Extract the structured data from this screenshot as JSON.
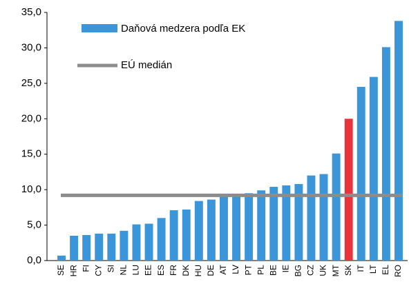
{
  "chart_data": {
    "type": "bar",
    "categories": [
      "SE",
      "HR",
      "FI",
      "CY",
      "SI",
      "NL",
      "LU",
      "EE",
      "ES",
      "FR",
      "DK",
      "HU",
      "DE",
      "AT",
      "LV",
      "PT",
      "PL",
      "BE",
      "IE",
      "BG",
      "CZ",
      "UK",
      "MT",
      "SK",
      "IT",
      "LT",
      "EL",
      "RO"
    ],
    "series": [
      {
        "name": "Daňová medzera podľa EK",
        "color": "#3a96d8",
        "values": [
          0.7,
          3.5,
          3.6,
          3.8,
          3.8,
          4.2,
          5.1,
          5.2,
          6.0,
          7.1,
          7.2,
          8.4,
          8.6,
          9.2,
          9.2,
          9.5,
          9.9,
          10.4,
          10.6,
          10.8,
          12.0,
          12.2,
          15.1,
          20.0,
          24.5,
          25.9,
          30.1,
          33.8
        ],
        "colors": [
          "#3a96d8",
          "#3a96d8",
          "#3a96d8",
          "#3a96d8",
          "#3a96d8",
          "#3a96d8",
          "#3a96d8",
          "#3a96d8",
          "#3a96d8",
          "#3a96d8",
          "#3a96d8",
          "#3a96d8",
          "#3a96d8",
          "#3a96d8",
          "#3a96d8",
          "#3a96d8",
          "#3a96d8",
          "#3a96d8",
          "#3a96d8",
          "#3a96d8",
          "#3a96d8",
          "#3a96d8",
          "#3a96d8",
          "#e8323c",
          "#3a96d8",
          "#3a96d8",
          "#3a96d8",
          "#3a96d8"
        ]
      }
    ],
    "reference_line": {
      "name": "EÚ medián",
      "value": 9.2,
      "color": "#8c8c8c"
    },
    "ylim": [
      0,
      35
    ],
    "yticks": [
      {
        "value": 0,
        "label": "0,0"
      },
      {
        "value": 5,
        "label": "5,0"
      },
      {
        "value": 10,
        "label": "10,0"
      },
      {
        "value": 15,
        "label": "15,0"
      },
      {
        "value": 20,
        "label": "20,0"
      },
      {
        "value": 25,
        "label": "25,0"
      },
      {
        "value": 30,
        "label": "30,0"
      },
      {
        "value": 35,
        "label": "35,0"
      }
    ],
    "grid": false
  }
}
